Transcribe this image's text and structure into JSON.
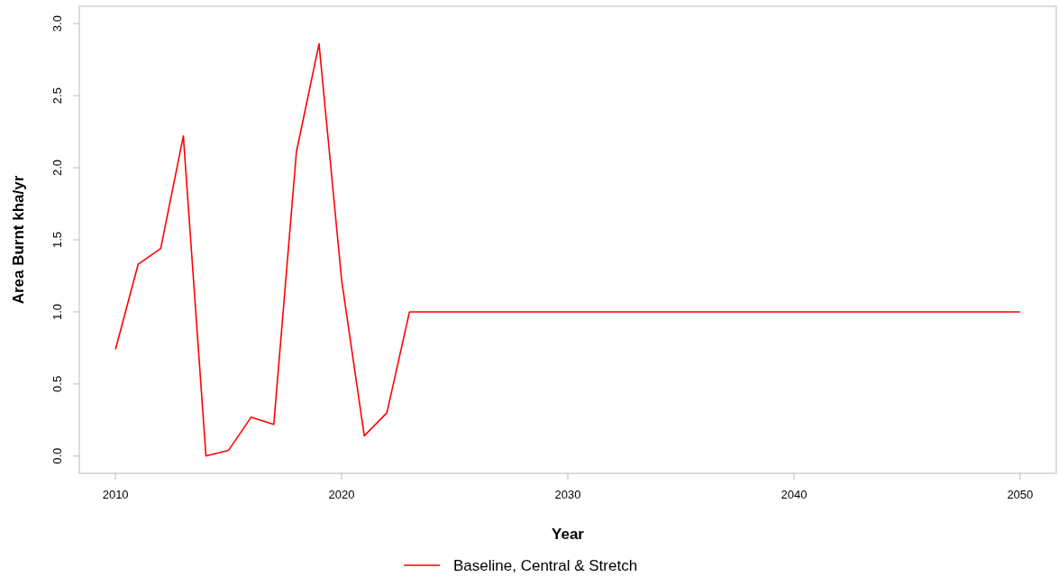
{
  "chart_data": {
    "type": "line",
    "xlabel": "Year",
    "ylabel": "Area Burnt kha/yr",
    "x": [
      2010,
      2011,
      2012,
      2013,
      2014,
      2015,
      2016,
      2017,
      2018,
      2019,
      2020,
      2021,
      2022,
      2023,
      2050
    ],
    "series": [
      {
        "name": "Baseline, Central & Stretch",
        "color": "#ff0000",
        "values": [
          0.74,
          1.33,
          1.44,
          2.22,
          0.0,
          0.04,
          0.27,
          0.22,
          2.11,
          2.86,
          1.22,
          0.14,
          0.3,
          1.0,
          1.0
        ]
      }
    ],
    "xlim": [
      2008.4,
      2051.6
    ],
    "xticks": [
      2010,
      2020,
      2030,
      2040,
      2050
    ],
    "ylim": [
      -0.12,
      3.12
    ],
    "yticks": [
      {
        "value": 0,
        "label": "0.0"
      },
      {
        "value": 0.5,
        "label": "0.5"
      },
      {
        "value": 1,
        "label": "1.0"
      },
      {
        "value": 1.5,
        "label": "1.5"
      },
      {
        "value": 2,
        "label": "2.0"
      },
      {
        "value": 2.5,
        "label": "2.5"
      },
      {
        "value": 3,
        "label": "3.0"
      }
    ],
    "grid": false,
    "legend": "bottom",
    "line_style": "solid",
    "marker": "none"
  }
}
